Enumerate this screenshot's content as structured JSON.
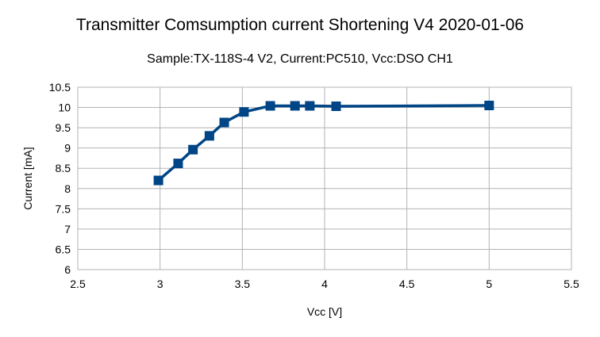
{
  "chart_data": {
    "type": "line",
    "title": "Transmitter Comsumption current Shortening V4 2020-01-06",
    "subtitle": "Sample:TX-118S-4 V2, Current:PC510, Vcc:DSO CH1",
    "xlabel": "Vcc [V]",
    "ylabel": "Current [mA]",
    "xlim": [
      2.5,
      5.5
    ],
    "ylim": [
      6,
      10.5
    ],
    "xticks": [
      "2.5",
      "3",
      "3.5",
      "4",
      "4.5",
      "5",
      "5.5"
    ],
    "yticks": [
      "6",
      "6.5",
      "7",
      "7.5",
      "8",
      "8.5",
      "9",
      "9.5",
      "10",
      "10.5"
    ],
    "grid": true,
    "legend": "none",
    "series_color": "#004586",
    "grid_color": "#b3b3b3",
    "marker": "square",
    "series": [
      {
        "x": [
          2.99,
          3.11,
          3.2,
          3.3,
          3.39,
          3.51,
          3.67,
          3.82,
          3.91,
          4.07,
          5.0
        ],
        "y": [
          8.2,
          8.62,
          8.96,
          9.3,
          9.63,
          9.89,
          10.04,
          10.04,
          10.04,
          10.03,
          10.05
        ]
      }
    ]
  }
}
